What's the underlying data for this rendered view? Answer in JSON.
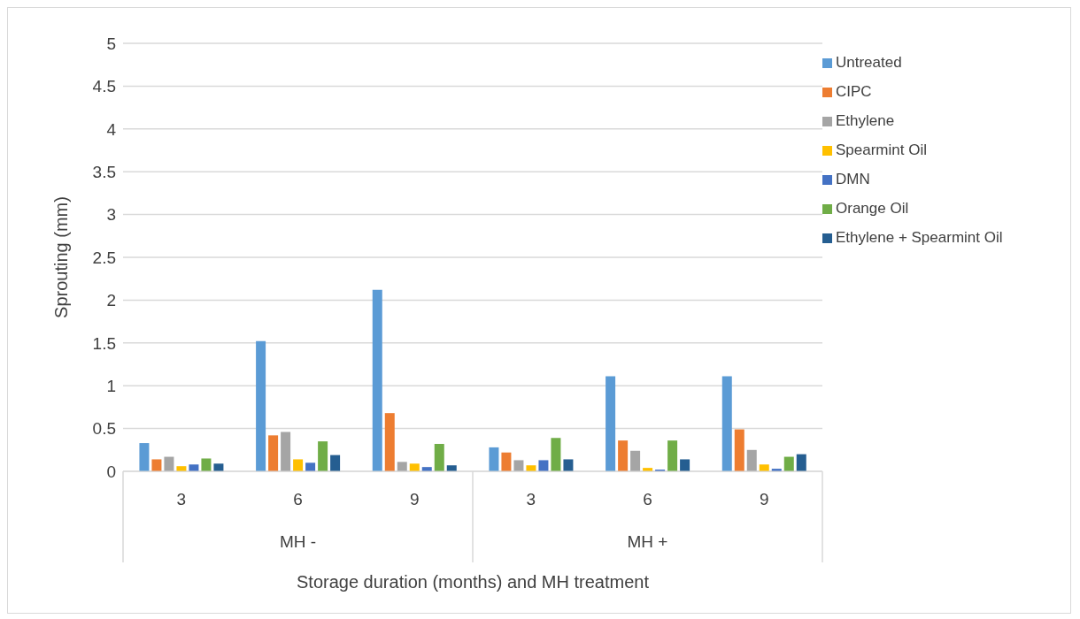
{
  "chart_data": {
    "type": "bar",
    "xlabel": "Storage duration (months) and MH treatment",
    "ylabel": "Sprouting (mm)",
    "categories": [
      "3",
      "6",
      "9",
      "3",
      "6",
      "9"
    ],
    "annotations": [
      "MH -",
      "MH +"
    ],
    "series": [
      {
        "name": "Untreated",
        "color": "#5b9bd5",
        "values": [
          0.33,
          1.52,
          2.12,
          0.28,
          1.11,
          1.11
        ]
      },
      {
        "name": "CIPC",
        "color": "#ed7d31",
        "values": [
          0.14,
          0.42,
          0.68,
          0.22,
          0.36,
          0.49
        ]
      },
      {
        "name": "Ethylene",
        "color": "#a5a5a5",
        "values": [
          0.17,
          0.46,
          0.11,
          0.13,
          0.24,
          0.25
        ]
      },
      {
        "name": "Spearmint Oil",
        "color": "#ffc000",
        "values": [
          0.06,
          0.14,
          0.09,
          0.07,
          0.04,
          0.08
        ]
      },
      {
        "name": "DMN",
        "color": "#4472c4",
        "values": [
          0.08,
          0.1,
          0.05,
          0.13,
          0.02,
          0.03
        ]
      },
      {
        "name": "Orange Oil",
        "color": "#70ad47",
        "values": [
          0.15,
          0.35,
          0.32,
          0.39,
          0.36,
          0.17
        ]
      },
      {
        "name": "Ethylene + Spearmint Oil",
        "color": "#255e91",
        "values": [
          0.09,
          0.19,
          0.07,
          0.14,
          0.14,
          0.2
        ]
      }
    ],
    "ylim": [
      0,
      5
    ],
    "yticks": [
      0,
      0.5,
      1,
      1.5,
      2,
      2.5,
      3,
      3.5,
      4,
      4.5,
      5
    ],
    "grid": "y",
    "legend": "right"
  }
}
